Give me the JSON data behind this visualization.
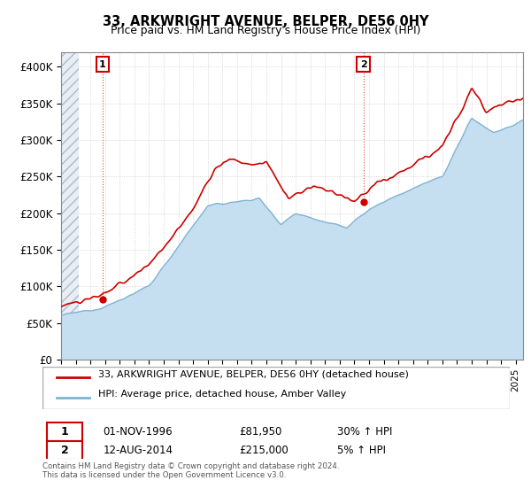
{
  "title": "33, ARKWRIGHT AVENUE, BELPER, DE56 0HY",
  "subtitle": "Price paid vs. HM Land Registry's House Price Index (HPI)",
  "ylim": [
    0,
    420000
  ],
  "yticks": [
    0,
    50000,
    100000,
    150000,
    200000,
    250000,
    300000,
    350000,
    400000
  ],
  "ytick_labels": [
    "£0",
    "£50K",
    "£100K",
    "£150K",
    "£200K",
    "£250K",
    "£300K",
    "£350K",
    "£400K"
  ],
  "xlim_start": 1994.0,
  "xlim_end": 2025.5,
  "red_color": "#cc0000",
  "blue_color": "#7fb3d3",
  "blue_fill_color": "#c5dff0",
  "dotted_line_color": "#dd4444",
  "sale1_x": 1996.83,
  "sale1_y": 81950,
  "sale2_x": 2014.62,
  "sale2_y": 215000,
  "legend_line1": "33, ARKWRIGHT AVENUE, BELPER, DE56 0HY (detached house)",
  "legend_line2": "HPI: Average price, detached house, Amber Valley",
  "row1_num": "1",
  "row1_date": "01-NOV-1996",
  "row1_price": "£81,950",
  "row1_hpi": "30% ↑ HPI",
  "row2_num": "2",
  "row2_date": "12-AUG-2014",
  "row2_price": "£215,000",
  "row2_hpi": "5% ↑ HPI",
  "footer": "Contains HM Land Registry data © Crown copyright and database right 2024.\nThis data is licensed under the Open Government Licence v3.0.",
  "grid_color": "#cccccc",
  "hatch_end": 1995.2,
  "bg_color": "#f0f4f8"
}
